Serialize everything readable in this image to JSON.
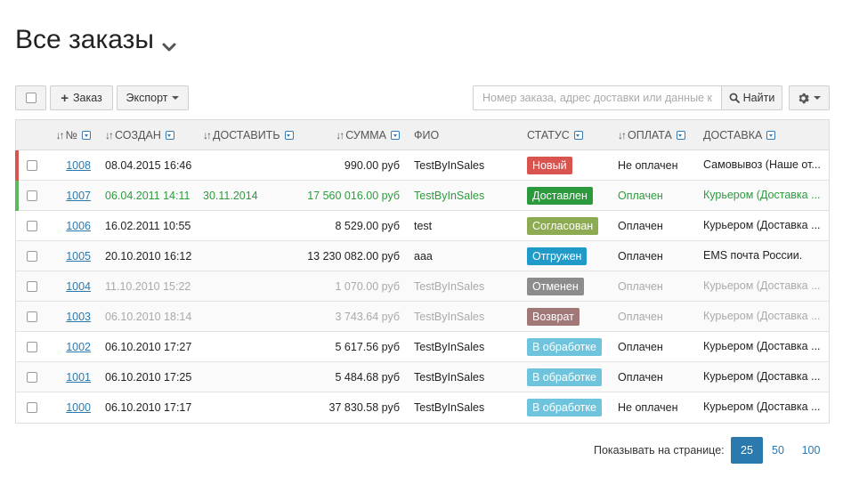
{
  "title": "Все заказы",
  "toolbar": {
    "add_label": "Заказ",
    "export_label": "Экспорт",
    "search_placeholder": "Номер заказа, адрес доставки или данные кл",
    "search_button": "Найти"
  },
  "columns": {
    "num": "№",
    "created": "СОЗДАН",
    "deliver": "ДОСТАВИТЬ",
    "sum": "СУММА",
    "fio": "ФИО",
    "status": "СТАТУС",
    "payment": "ОПЛАТА",
    "shipping": "ДОСТАВКА"
  },
  "rows": [
    {
      "num": "1008",
      "created": "08.04.2015 16:46",
      "deliver": "",
      "sum": "990.00 руб",
      "fio": "TestByInSales",
      "status": "Новый",
      "status_color": "#d9534f",
      "payment": "Не оплачен",
      "shipping": "Самовывоз (Наше от...",
      "marker": "#d9534f",
      "tone": "normal"
    },
    {
      "num": "1007",
      "created": "06.04.2011 14:11",
      "deliver": "30.11.2014",
      "sum": "17 560 016.00 руб",
      "fio": "TestByInSales",
      "status": "Доставлен",
      "status_color": "#2a9a3c",
      "payment": "Оплачен",
      "shipping": "Курьером (Доставка ...",
      "marker": "#5cb85c",
      "tone": "green"
    },
    {
      "num": "1006",
      "created": "16.02.2011 10:55",
      "deliver": "",
      "sum": "8 529.00 руб",
      "fio": "test",
      "status": "Согласован",
      "status_color": "#8dab52",
      "payment": "Оплачен",
      "shipping": "Курьером (Доставка ...",
      "marker": "",
      "tone": "normal"
    },
    {
      "num": "1005",
      "created": "20.10.2010 16:12",
      "deliver": "",
      "sum": "13 230 082.00 руб",
      "fio": "aaa",
      "status": "Отгружен",
      "status_color": "#1f9ac9",
      "payment": "Оплачен",
      "shipping": "EMS почта России.",
      "marker": "",
      "tone": "normal"
    },
    {
      "num": "1004",
      "created": "11.10.2010 15:22",
      "deliver": "",
      "sum": "1 070.00 руб",
      "fio": "TestByInSales",
      "status": "Отменен",
      "status_color": "#8c8c8c",
      "payment": "Оплачен",
      "shipping": "Курьером (Доставка ...",
      "marker": "",
      "tone": "muted"
    },
    {
      "num": "1003",
      "created": "06.10.2010 18:14",
      "deliver": "",
      "sum": "3 743.64 руб",
      "fio": "TestByInSales",
      "status": "Возврат",
      "status_color": "#a07878",
      "payment": "Оплачен",
      "shipping": "Курьером (Доставка ...",
      "marker": "",
      "tone": "muted"
    },
    {
      "num": "1002",
      "created": "06.10.2010 17:27",
      "deliver": "",
      "sum": "5 617.56 руб",
      "fio": "TestByInSales",
      "status": "В обработке",
      "status_color": "#6ec4dc",
      "payment": "Оплачен",
      "shipping": "Курьером (Доставка ...",
      "marker": "",
      "tone": "normal"
    },
    {
      "num": "1001",
      "created": "06.10.2010 17:25",
      "deliver": "",
      "sum": "5 484.68 руб",
      "fio": "TestByInSales",
      "status": "В обработке",
      "status_color": "#6ec4dc",
      "payment": "Оплачен",
      "shipping": "Курьером (Доставка ...",
      "marker": "",
      "tone": "normal"
    },
    {
      "num": "1000",
      "created": "06.10.2010 17:17",
      "deliver": "",
      "sum": "37 830.58 руб",
      "fio": "TestByInSales",
      "status": "В обработке",
      "status_color": "#6ec4dc",
      "payment": "Не оплачен",
      "shipping": "Курьером (Доставка ...",
      "marker": "",
      "tone": "normal"
    }
  ],
  "pager": {
    "label": "Показывать на странице:",
    "options": [
      "25",
      "50",
      "100"
    ],
    "selected": "25"
  }
}
